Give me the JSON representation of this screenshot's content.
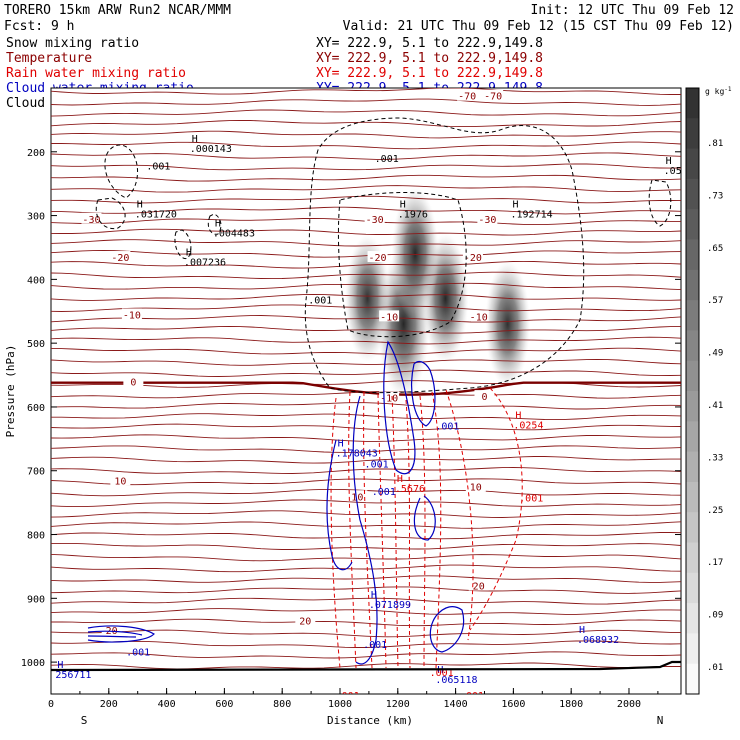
{
  "header": {
    "model": "TORERO  15km ARW   Run2    NCAR/MMM",
    "init": "Init: 12 UTC Thu 09 Feb 12",
    "fcst": "Fcst:    9 h",
    "valid": "Valid: 21 UTC Thu 09 Feb 12 (15 CST Thu 09 Feb 12)"
  },
  "legend": [
    {
      "name": "Snow mixing ratio",
      "color": "#000000",
      "xy": "XY= 222.9,  5.1 to 222.9,149.8"
    },
    {
      "name": "Temperature",
      "color": "#8b0000",
      "xy": "XY= 222.9,  5.1 to 222.9,149.8"
    },
    {
      "name": "Rain water mixing ratio",
      "color": "#e00000",
      "xy": "XY= 222.9,  5.1 to 222.9,149.8"
    },
    {
      "name": "Cloud water mixing ratio",
      "color": "#0000c0",
      "xy": "XY= 222.9,  5.1 to 222.9,149.8"
    },
    {
      "name": "Cloud ice mixing ratio",
      "color": "#000000",
      "xy": "XY= 222.9,  5.1 to 222.9,149.8"
    }
  ],
  "chart_data": {
    "type": "heatmap",
    "title": "Cross section",
    "xlabel": "Distance (km)",
    "ylabel": "Pressure (hPa)",
    "x_left_label": "S",
    "x_right_label": "N",
    "xlim": [
      0,
      2180
    ],
    "ylim": [
      1050,
      100
    ],
    "x_ticks": [
      0,
      200,
      400,
      600,
      800,
      1000,
      1200,
      1400,
      1600,
      1800,
      2000
    ],
    "y_ticks": [
      200,
      300,
      400,
      500,
      600,
      700,
      800,
      900,
      1000
    ],
    "colorbar": {
      "unit": "g kg",
      "unit_exp": "-1",
      "ticks": [
        ".81",
        ".73",
        ".65",
        ".57",
        ".49",
        ".41",
        ".33",
        ".25",
        ".17",
        ".09",
        ".01"
      ]
    },
    "temperature_isotherms": [
      {
        "label": "-70",
        "p": 112
      },
      {
        "label": "-30",
        "p": 308
      },
      {
        "label": "-20",
        "p": 365
      },
      {
        "label": "-10",
        "p": 460
      },
      {
        "label": "0",
        "p": 562,
        "bold": true
      },
      {
        "label": "10",
        "p": 715
      },
      {
        "label": "20",
        "p": 930
      }
    ],
    "temperature_labels": [
      {
        "text": "-70",
        "x": 1440,
        "p": 112
      },
      {
        "text": "-70",
        "x": 1530,
        "p": 112
      },
      {
        "text": "-30",
        "x": 140,
        "p": 305
      },
      {
        "text": "-30",
        "x": 1120,
        "p": 305
      },
      {
        "text": "-30",
        "x": 1510,
        "p": 305
      },
      {
        "text": "-20",
        "x": 240,
        "p": 365
      },
      {
        "text": "-20",
        "x": 1130,
        "p": 365
      },
      {
        "text": "-20",
        "x": 1460,
        "p": 365
      },
      {
        "text": "-10",
        "x": 280,
        "p": 455
      },
      {
        "text": "-10",
        "x": 1170,
        "p": 458
      },
      {
        "text": "-10",
        "x": 1480,
        "p": 458
      },
      {
        "text": "0",
        "x": 285,
        "p": 560
      },
      {
        "text": "0",
        "x": 1500,
        "p": 583
      },
      {
        "text": "-10",
        "x": 1170,
        "p": 585
      },
      {
        "text": "10",
        "x": 240,
        "p": 715
      },
      {
        "text": "10",
        "x": 1060,
        "p": 740
      },
      {
        "text": "10",
        "x": 1470,
        "p": 725
      },
      {
        "text": "20",
        "x": 210,
        "p": 950
      },
      {
        "text": "20",
        "x": 880,
        "p": 935
      },
      {
        "text": "20",
        "x": 1480,
        "p": 880
      }
    ],
    "maxima_labels": [
      {
        "text": ".000143",
        "x": 480,
        "p": 200,
        "color": "#000000"
      },
      {
        "text": ".001",
        "x": 330,
        "p": 228,
        "color": "#000000"
      },
      {
        "text": ".031720",
        "x": 290,
        "p": 303,
        "color": "#000000"
      },
      {
        "text": ".004483",
        "x": 560,
        "p": 333,
        "color": "#000000"
      },
      {
        "text": ".007236",
        "x": 460,
        "p": 378,
        "color": "#000000"
      },
      {
        "text": ".001",
        "x": 890,
        "p": 438,
        "color": "#000000"
      },
      {
        "text": ".001",
        "x": 1120,
        "p": 216,
        "color": "#000000"
      },
      {
        "text": ".1976",
        "x": 1200,
        "p": 303,
        "color": "#000000"
      },
      {
        "text": ".192714",
        "x": 1590,
        "p": 303,
        "color": "#000000"
      },
      {
        "text": ".05850",
        "x": 2120,
        "p": 235,
        "color": "#000000"
      },
      {
        "text": ".178043",
        "x": 985,
        "p": 678,
        "color": "#0000c0"
      },
      {
        "text": ".001",
        "x": 1330,
        "p": 635,
        "color": "#0000c0"
      },
      {
        "text": ".001",
        "x": 1085,
        "p": 695,
        "color": "#0000c0"
      },
      {
        "text": ".001",
        "x": 1110,
        "p": 738,
        "color": "#0000c0"
      },
      {
        "text": ".071899",
        "x": 1100,
        "p": 915,
        "color": "#0000c0"
      },
      {
        "text": ".001",
        "x": 1080,
        "p": 978,
        "color": "#0000c0"
      },
      {
        "text": ".065118",
        "x": 1330,
        "p": 1033,
        "color": "#0000c0"
      },
      {
        "text": ".068932",
        "x": 1820,
        "p": 970,
        "color": "#0000c0"
      },
      {
        "text": ".001",
        "x": 260,
        "p": 990,
        "color": "#0000c0"
      },
      {
        "text": "256711",
        "x": 15,
        "p": 1025,
        "color": "#0000c0"
      },
      {
        "text": ".0254",
        "x": 1600,
        "p": 634,
        "color": "#e00000"
      },
      {
        "text": ".001",
        "x": 1620,
        "p": 748,
        "color": "#e00000"
      },
      {
        "text": ".5676",
        "x": 1190,
        "p": 733,
        "color": "#e00000"
      },
      {
        "text": ".001",
        "x": 1310,
        "p": 1022,
        "color": "#e00000"
      },
      {
        "text": ".001",
        "x": 985,
        "p": 1058,
        "color": "#e00000"
      },
      {
        "text": ".001",
        "x": 1415,
        "p": 1058,
        "color": "#e00000"
      }
    ],
    "snow_blobs": [
      {
        "x": 1220,
        "p": 470,
        "peak": 0.8
      },
      {
        "x": 1095,
        "p": 430,
        "peak": 0.45
      },
      {
        "x": 1365,
        "p": 430,
        "peak": 0.5
      },
      {
        "x": 1580,
        "p": 470,
        "peak": 0.45
      },
      {
        "x": 1260,
        "p": 360,
        "peak": 0.55
      }
    ]
  }
}
